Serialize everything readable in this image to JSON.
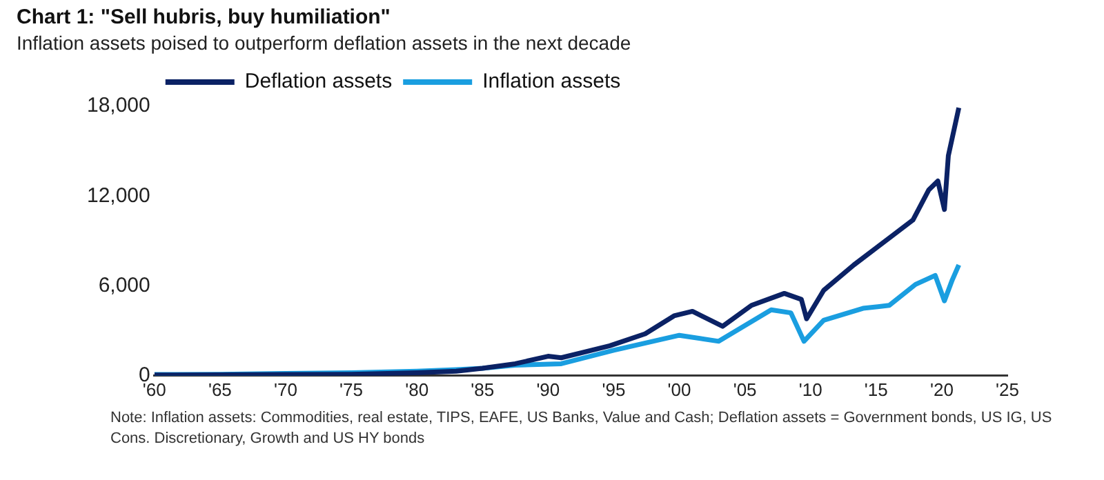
{
  "chart_data": {
    "type": "line",
    "title": "Chart 1: \"Sell hubris, buy humiliation\"",
    "subtitle": "Inflation assets poised to outperform deflation assets in the next decade",
    "annotations": [
      "Note: Inflation assets: Commodities, real estate, TIPS, EAFE, US Banks, Value and Cash; Deflation assets = Government bonds, US IG, US Cons. Discretionary, Growth and US HY bonds"
    ],
    "x": [
      1960,
      1965,
      1970,
      1975,
      1980,
      1983,
      1985,
      1987.5,
      1990,
      1991,
      1994.7,
      1997.4,
      1999.6,
      2001,
      2003.3,
      2005.5,
      2008,
      2009.3,
      2009.7,
      2011,
      2013.3,
      2016.3,
      2017.8,
      2019,
      2019.7,
      2020.2,
      2020.5,
      2021.3
    ],
    "series": [
      {
        "name": "Deflation assets",
        "color": "#0b2265",
        "values": [
          50,
          60,
          80,
          100,
          200,
          300,
          500,
          800,
          1300,
          1200,
          2000,
          2800,
          4000,
          4300,
          3300,
          4700,
          5500,
          5100,
          3800,
          5700,
          7400,
          9400,
          10400,
          12400,
          13000,
          11100,
          14700,
          17900
        ]
      },
      {
        "name": "Inflation assets",
        "color": "#1a9ee0",
        "x": [
          1960,
          1965,
          1970,
          1975,
          1980,
          1983,
          1985,
          1987.5,
          1991,
          1995,
          2000,
          2003,
          2007,
          2008.5,
          2009.5,
          2011,
          2014,
          2016,
          2018,
          2019.5,
          2020.2,
          2020.8,
          2021.3
        ],
        "values": [
          80,
          100,
          150,
          200,
          300,
          400,
          500,
          700,
          800,
          1700,
          2700,
          2300,
          4400,
          4200,
          2300,
          3700,
          4500,
          4700,
          6100,
          6700,
          5000,
          6400,
          7400
        ]
      }
    ],
    "xlim": [
      1960,
      2025
    ],
    "xticks": [
      {
        "value": 1960,
        "label": "'60"
      },
      {
        "value": 1965,
        "label": "'65"
      },
      {
        "value": 1970,
        "label": "'70"
      },
      {
        "value": 1975,
        "label": "'75"
      },
      {
        "value": 1980,
        "label": "'80"
      },
      {
        "value": 1985,
        "label": "'85"
      },
      {
        "value": 1990,
        "label": "'90"
      },
      {
        "value": 1995,
        "label": "'95"
      },
      {
        "value": 2000,
        "label": "'00"
      },
      {
        "value": 2005,
        "label": "'05"
      },
      {
        "value": 2010,
        "label": "'10"
      },
      {
        "value": 2015,
        "label": "'15"
      },
      {
        "value": 2020,
        "label": "'20"
      },
      {
        "value": 2025,
        "label": "'25"
      }
    ],
    "ylim": [
      0,
      18000
    ],
    "yticks": [
      0,
      {
        "value": 6000,
        "label": "6,000"
      },
      {
        "value": 12000,
        "label": "12,000"
      },
      {
        "value": 18000,
        "label": "18,000"
      }
    ],
    "grid": false,
    "legend": "top left",
    "marker": "none",
    "line_style": "solid"
  }
}
